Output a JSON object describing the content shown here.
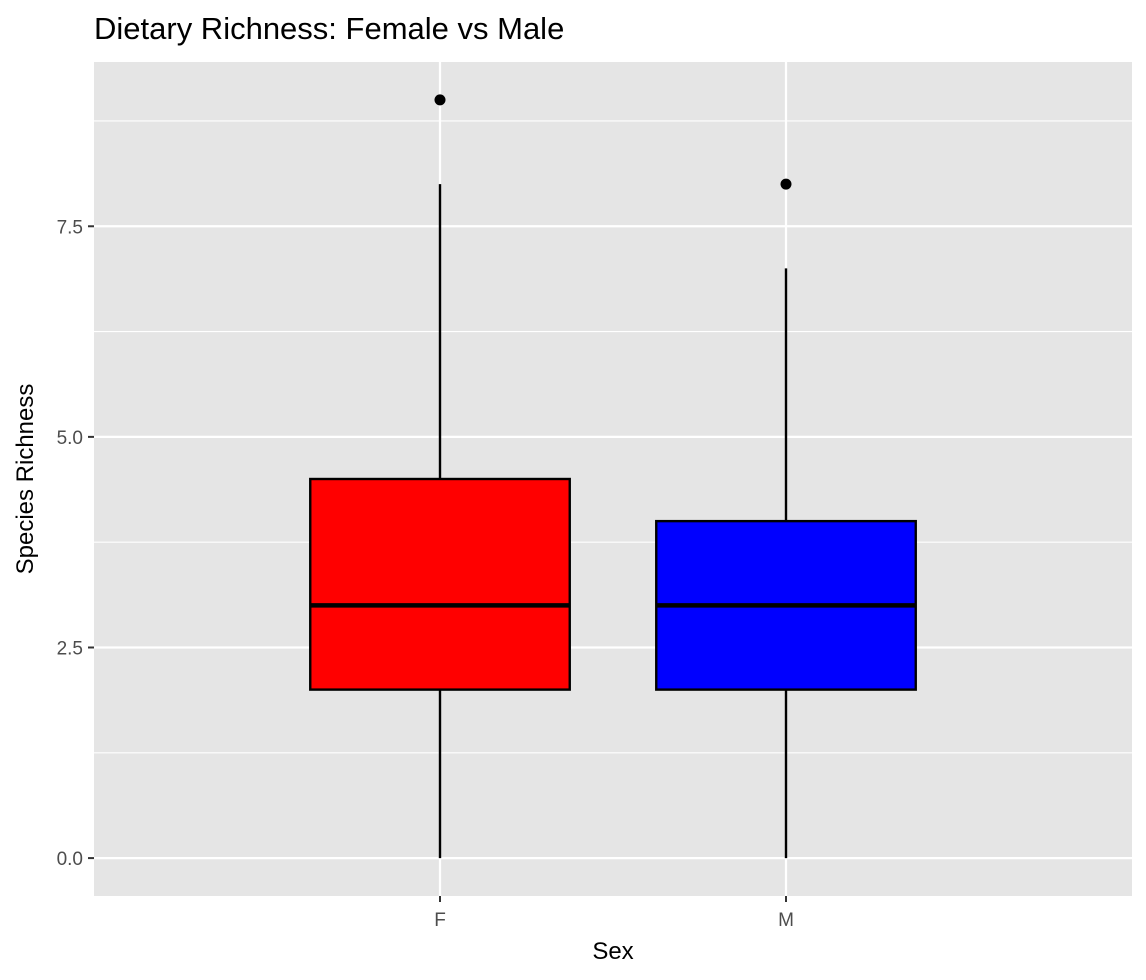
{
  "chart_data": {
    "type": "boxplot",
    "title": "Dietary Richness: Female vs Male",
    "xlabel": "Sex",
    "ylabel": "Species Richness",
    "categories": [
      "F",
      "M"
    ],
    "ylim": [
      -0.45,
      9.45
    ],
    "y_ticks": [
      0,
      2.5,
      5,
      7.5
    ],
    "y_tick_labels": [
      "0.0",
      "2.5",
      "5.0",
      "7.5"
    ],
    "grid": true,
    "legend": "none",
    "boxes": [
      {
        "category": "F",
        "whisker_low": 0,
        "q1": 2,
        "median": 3,
        "q3": 4.5,
        "whisker_high": 8,
        "outliers": [
          9
        ],
        "color": "#ff0000"
      },
      {
        "category": "M",
        "whisker_low": 0,
        "q1": 2,
        "median": 3,
        "q3": 4,
        "whisker_high": 7,
        "outliers": [
          8
        ],
        "color": "#0000ff"
      }
    ],
    "colors": {
      "panel": "#e5e5e5",
      "grid": "#ffffff",
      "box_outline": "#000000",
      "tick_text": "#4d4d4d",
      "tick_mark": "#333333"
    }
  }
}
